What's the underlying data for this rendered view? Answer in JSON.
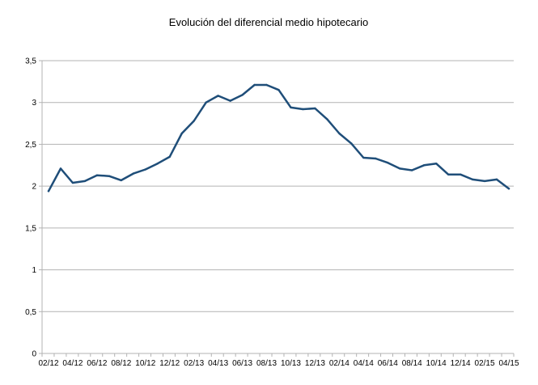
{
  "chart_data": {
    "type": "line",
    "title": "Evolución del diferencial medio hipotecario",
    "xlabel": "",
    "ylabel": "",
    "ylim": [
      0,
      3.5
    ],
    "y_ticks": [
      0,
      0.5,
      1,
      1.5,
      2,
      2.5,
      3,
      3.5
    ],
    "y_tick_labels": [
      "0",
      "0,5",
      "1",
      "1,5",
      "2",
      "2,5",
      "3",
      "3,5"
    ],
    "x_tick_labels": [
      "02/12",
      "04/12",
      "06/12",
      "08/12",
      "10/12",
      "12/12",
      "02/13",
      "04/13",
      "06/13",
      "08/13",
      "10/13",
      "12/13",
      "02/14",
      "04/14",
      "06/14",
      "08/14",
      "10/14",
      "12/14",
      "02/15",
      "04/15"
    ],
    "grid": true,
    "legend": "none",
    "line_color": "#1f4e79",
    "x": [
      "02/12",
      "03/12",
      "04/12",
      "05/12",
      "06/12",
      "07/12",
      "08/12",
      "09/12",
      "10/12",
      "11/12",
      "12/12",
      "01/13",
      "02/13",
      "03/13",
      "04/13",
      "05/13",
      "06/13",
      "07/13",
      "08/13",
      "09/13",
      "10/13",
      "11/13",
      "12/13",
      "01/14",
      "02/14",
      "03/14",
      "04/14",
      "05/14",
      "06/14",
      "07/14",
      "08/14",
      "09/14",
      "10/14",
      "11/14",
      "12/14",
      "01/15",
      "02/15",
      "03/15",
      "04/15"
    ],
    "values": [
      1.94,
      2.21,
      2.04,
      2.06,
      2.13,
      2.12,
      2.07,
      2.15,
      2.2,
      2.27,
      2.35,
      2.63,
      2.78,
      3.0,
      3.08,
      3.02,
      3.09,
      3.21,
      3.21,
      3.15,
      2.94,
      2.92,
      2.93,
      2.8,
      2.63,
      2.51,
      2.34,
      2.33,
      2.28,
      2.21,
      2.19,
      2.25,
      2.27,
      2.14,
      2.14,
      2.08,
      2.06,
      2.08,
      1.97
    ]
  }
}
